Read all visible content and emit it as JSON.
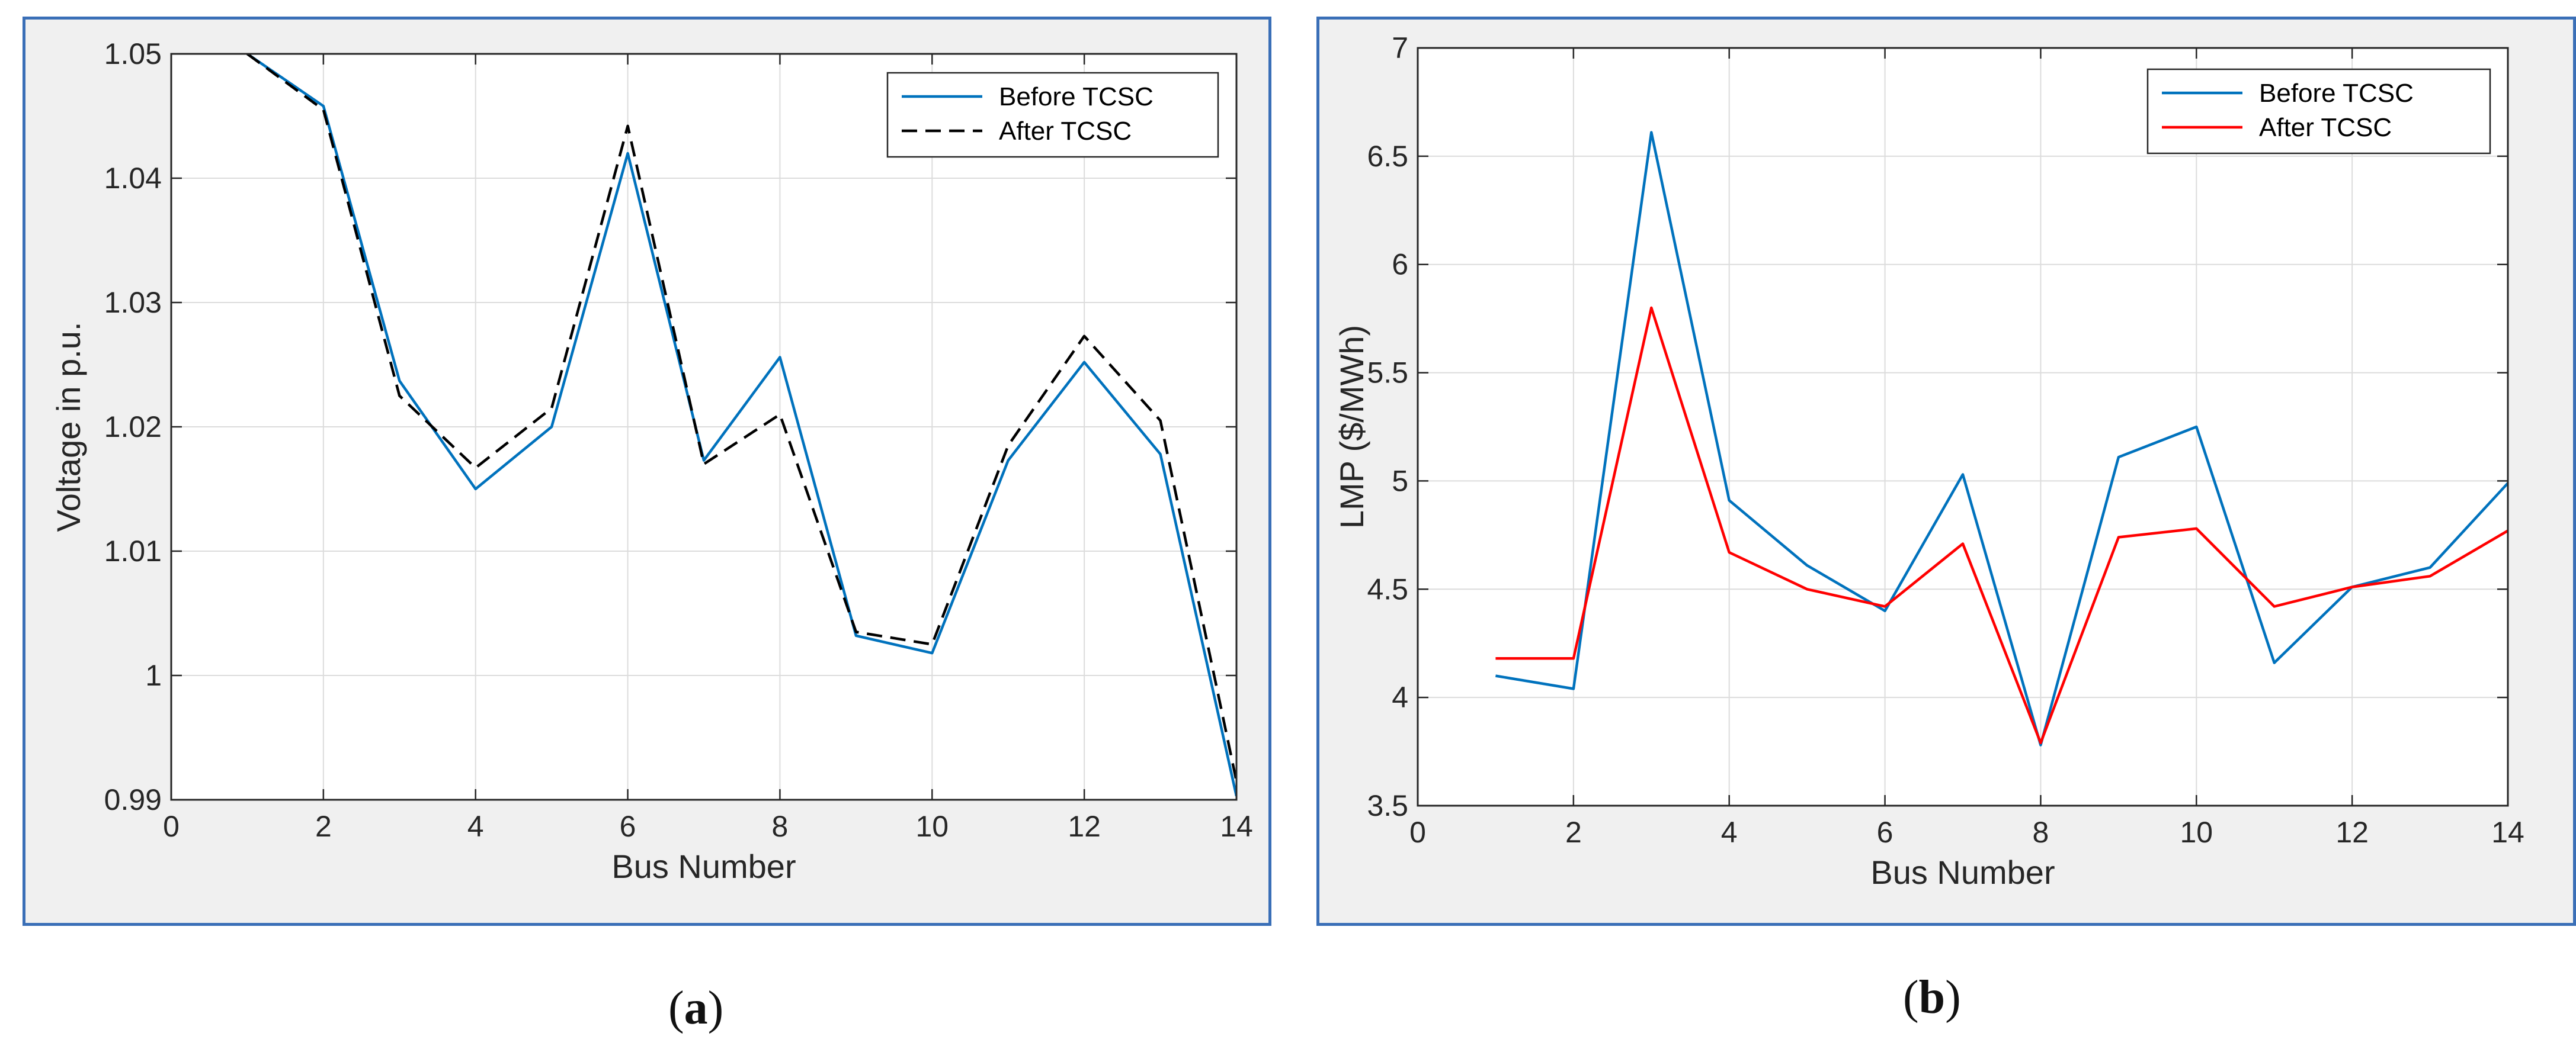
{
  "figure": {
    "caption_a": "a",
    "caption_b": "b"
  },
  "chart_data": [
    {
      "id": "a",
      "type": "line",
      "title": "",
      "xlabel": "Bus Number",
      "ylabel": "Voltage in p.u.",
      "xlim": [
        0,
        14
      ],
      "ylim": [
        0.99,
        1.05
      ],
      "xticks": [
        0,
        2,
        4,
        6,
        8,
        10,
        12,
        14
      ],
      "yticks": [
        0.99,
        1,
        1.01,
        1.02,
        1.03,
        1.04,
        1.05
      ],
      "ytick_labels": [
        "0.99",
        "1",
        "1.01",
        "1.02",
        "1.03",
        "1.04",
        "1.05"
      ],
      "grid": true,
      "legend_position": "top-right",
      "x": [
        1,
        2,
        3,
        4,
        5,
        6,
        7,
        8,
        9,
        10,
        11,
        12,
        13,
        14
      ],
      "series": [
        {
          "name": "Before TCSC",
          "color": "#0072bd",
          "dash": "solid",
          "values": [
            1.05,
            1.0458,
            1.0237,
            1.015,
            1.02,
            1.042,
            1.0173,
            1.0256,
            1.0032,
            1.0018,
            1.0173,
            1.0252,
            1.0178,
            0.9903
          ]
        },
        {
          "name": "After TCSC",
          "color": "#000000",
          "dash": "dashed",
          "values": [
            1.05,
            1.0455,
            1.0225,
            1.0167,
            1.0215,
            1.0442,
            1.017,
            1.021,
            1.0035,
            1.0025,
            1.0185,
            1.0273,
            1.0205,
            0.9915
          ]
        }
      ]
    },
    {
      "id": "b",
      "type": "line",
      "title": "",
      "xlabel": "Bus Number",
      "ylabel": "LMP ($/MWh)",
      "xlim": [
        0,
        14
      ],
      "ylim": [
        3.5,
        7
      ],
      "xticks": [
        0,
        2,
        4,
        6,
        8,
        10,
        12,
        14
      ],
      "yticks": [
        3.5,
        4,
        4.5,
        5,
        5.5,
        6,
        6.5,
        7
      ],
      "ytick_labels": [
        "3.5",
        "4",
        "4.5",
        "5",
        "5.5",
        "6",
        "6.5",
        "7"
      ],
      "grid": true,
      "legend_position": "top-right",
      "x": [
        1,
        2,
        3,
        4,
        5,
        6,
        7,
        8,
        9,
        10,
        11,
        12,
        13,
        14
      ],
      "series": [
        {
          "name": "Before TCSC",
          "color": "#0072bd",
          "dash": "solid",
          "values": [
            4.1,
            4.04,
            6.61,
            4.91,
            4.61,
            4.4,
            5.03,
            3.78,
            5.11,
            5.25,
            4.16,
            4.51,
            4.6,
            4.99
          ]
        },
        {
          "name": "After TCSC",
          "color": "#ff0000",
          "dash": "solid",
          "values": [
            4.18,
            4.18,
            5.8,
            4.67,
            4.5,
            4.42,
            4.71,
            3.79,
            4.74,
            4.78,
            4.42,
            4.51,
            4.56,
            4.77
          ]
        }
      ]
    }
  ]
}
